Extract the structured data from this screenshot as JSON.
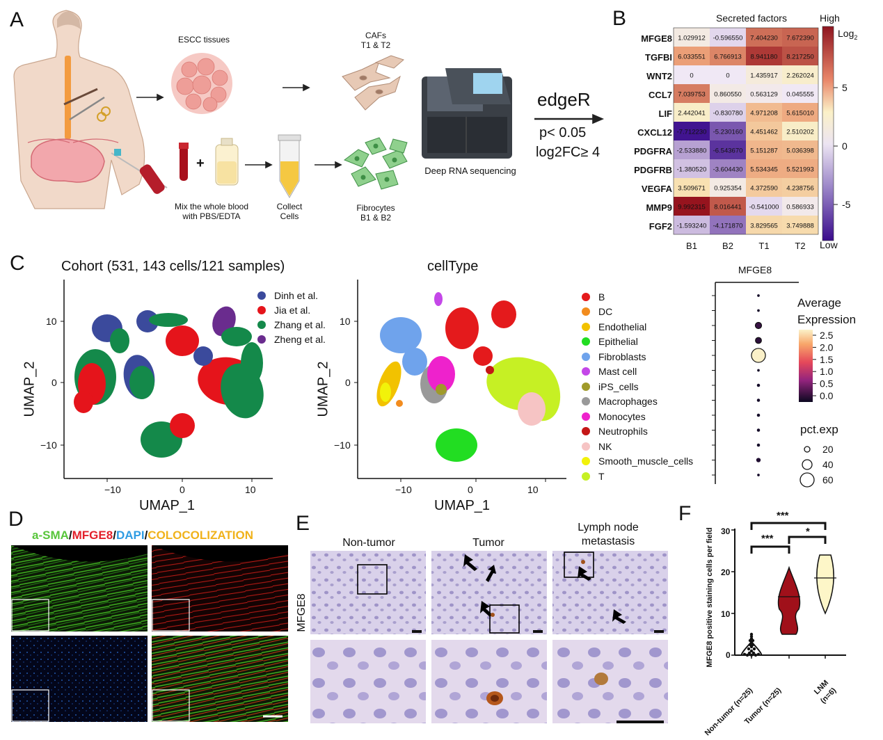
{
  "panels": {
    "A": "A",
    "B": "B",
    "C": "C",
    "D": "D",
    "E": "E",
    "F": "F"
  },
  "panelA": {
    "escc": "ESCC tissues",
    "cafs_line1": "CAFs",
    "cafs_line2": "T1 & T2",
    "mix_line1": "Mix the whole blood",
    "mix_line2": "with PBS/EDTA",
    "collect_line1": "Collect",
    "collect_line2": "Cells",
    "fibro_line1": "Fibrocytes",
    "fibro_line2": "B1 & B2",
    "seq": "Deep RNA sequencing",
    "plus": "+",
    "edger": "edgeR",
    "pval": "p< 0.05",
    "log2fc": "log2FC≥ 4"
  },
  "panelB": {
    "title": "Secreted factors",
    "high": "High",
    "low": "Low",
    "cbar_label": "Log",
    "cbar_sub": "2",
    "cbar_ticks": [
      "5",
      "0",
      "-5"
    ],
    "columns": [
      "B1",
      "B2",
      "T1",
      "T2"
    ],
    "rows": [
      "MFGE8",
      "TGFBI",
      "WNT2",
      "CCL7",
      "LIF",
      "CXCL12",
      "PDGFRA",
      "PDGFRB",
      "VEGFA",
      "MMP9",
      "FGF2"
    ],
    "values": [
      [
        "1.029912",
        "-0.596550",
        "7.404230",
        "7.672390"
      ],
      [
        "6.033551",
        "6.766913",
        "8.941180",
        "8.217250"
      ],
      [
        "0",
        "0",
        "1.435917",
        "2.262024"
      ],
      [
        "7.039753",
        "0.860550",
        "0.563129",
        "0.045555"
      ],
      [
        "2.442041",
        "-0.830780",
        "4.971208",
        "5.615010"
      ],
      [
        "-7.712230",
        "-5.230160",
        "4.451462",
        "2.510202"
      ],
      [
        "-2.533880",
        "-6.543670",
        "5.151287",
        "5.036398"
      ],
      [
        "-1.380520",
        "-3.604430",
        "5.534345",
        "5.521993"
      ],
      [
        "3.509671",
        "0.925354",
        "4.372590",
        "4.238756"
      ],
      [
        "9.992315",
        "8.016441",
        "-0.541000",
        "0.586933"
      ],
      [
        "-1.593240",
        "-4.171870",
        "3.829565",
        "3.749888"
      ]
    ]
  },
  "panelC": {
    "umap1_title": "Cohort (531, 143 cells/121 samples)",
    "umap2_title": "cellType",
    "xlabel": "UMAP_1",
    "ylabel": "UMAP_2",
    "xticks": [
      "−10",
      "0",
      "10"
    ],
    "yticks": [
      "10",
      "0",
      "−10"
    ],
    "cohort_legend": [
      {
        "name": "Dinh et al.",
        "color": "#3b4a9c"
      },
      {
        "name": "Jia et al.",
        "color": "#e5141b"
      },
      {
        "name": "Zhang et al.",
        "color": "#14894a"
      },
      {
        "name": "Zheng et al.",
        "color": "#6a2c8e"
      }
    ],
    "celltype_legend": [
      {
        "name": "B",
        "color": "#e41a1c"
      },
      {
        "name": "DC",
        "color": "#f28c1e"
      },
      {
        "name": "Endothelial",
        "color": "#f2c200"
      },
      {
        "name": "Epithelial",
        "color": "#22dd22"
      },
      {
        "name": "Fibroblasts",
        "color": "#6fa3ec"
      },
      {
        "name": "Mast cell",
        "color": "#c447e8"
      },
      {
        "name": "iPS_cells",
        "color": "#a09a2a"
      },
      {
        "name": "Macrophages",
        "color": "#999999"
      },
      {
        "name": "Monocytes",
        "color": "#ee22cc"
      },
      {
        "name": "Neutrophils",
        "color": "#c41616"
      },
      {
        "name": "NK",
        "color": "#f6c4c4"
      },
      {
        "name": "Smooth_muscle_cells",
        "color": "#f2f20a"
      },
      {
        "name": "T",
        "color": "#c6f024"
      }
    ],
    "dot_title": "MFGE8",
    "avg_expr_line1": "Average",
    "avg_expr_line2": "Expression",
    "avg_ticks": [
      "2.5",
      "2.0",
      "1.5",
      "1.0",
      "0.5",
      "0.0"
    ],
    "pct_title": "pct.exp",
    "pct_ticks": [
      "20",
      "40",
      "60"
    ]
  },
  "panelD": {
    "asma": "a-SMA",
    "sep1": "/",
    "mfge8": "MFGE8",
    "sep2": "/",
    "dapi": "DAPI",
    "sep3": "/",
    "coloc": "COLOCOLIZATION"
  },
  "panelE": {
    "col1": "Non-tumor",
    "col2": "Tumor",
    "col3_line1": "Lymph node",
    "col3_line2": "metastasis",
    "side": "MFGE8"
  },
  "panelF": {
    "ylabel": "MFGE8 positive staining cells per field",
    "yticks": [
      "30",
      "20",
      "10",
      "0"
    ],
    "groups": [
      "Non-tumor (n=25)",
      "Tumor (n=25)",
      "LNM",
      "(n=6)"
    ],
    "sig1": "***",
    "sig2": "***",
    "sig3": "*"
  },
  "chart_data": [
    {
      "type": "heatmap",
      "title": "Secreted factors",
      "categories": [
        "B1",
        "B2",
        "T1",
        "T2"
      ],
      "rows": [
        "MFGE8",
        "TGFBI",
        "WNT2",
        "CCL7",
        "LIF",
        "CXCL12",
        "PDGFRA",
        "PDGFRB",
        "VEGFA",
        "MMP9",
        "FGF2"
      ],
      "values": [
        [
          1.029912,
          -0.59655,
          7.40423,
          7.67239
        ],
        [
          6.033551,
          6.766913,
          8.94118,
          8.21725
        ],
        [
          0,
          0,
          1.435917,
          2.262024
        ],
        [
          7.039753,
          0.86055,
          0.563129,
          0.045555
        ],
        [
          2.442041,
          -0.83078,
          4.971208,
          5.61501
        ],
        [
          -7.71223,
          -5.23016,
          4.451462,
          2.510202
        ],
        [
          -2.53388,
          -6.54367,
          5.151287,
          5.036398
        ],
        [
          -1.38052,
          -3.60443,
          5.534345,
          5.521993
        ],
        [
          3.509671,
          0.925354,
          4.37259,
          4.238756
        ],
        [
          9.992315,
          8.016441,
          -0.541,
          0.586933
        ],
        [
          -1.59324,
          -4.17187,
          3.829565,
          3.749888
        ]
      ]
    },
    {
      "type": "scatter",
      "title": "MFGE8",
      "y": [
        "B",
        "DC",
        "Endothelial",
        "Epithelial",
        "Fibroblasts",
        "Mast cell",
        "iPS_cells",
        "Macrophages",
        "Monocytes",
        "Neutrophils",
        "NK",
        "Smooth_muscle_cells",
        "T"
      ],
      "avg_expression": [
        0,
        0,
        0.3,
        0.2,
        2.5,
        0,
        0,
        0,
        0,
        0,
        0,
        0.1,
        0
      ],
      "pct_exp": [
        2,
        2,
        12,
        11,
        60,
        2,
        3,
        3,
        3,
        3,
        3,
        6,
        2
      ]
    },
    {
      "type": "violin",
      "ylabel": "MFGE8 positive staining cells per field",
      "ylim": [
        0,
        30
      ],
      "categories": [
        "Non-tumor (n=25)",
        "Tumor (n=25)",
        "LNM (n=6)"
      ],
      "series": [
        {
          "name": "Non-tumor (n=25)",
          "min": 0,
          "median": 0,
          "max": 5
        },
        {
          "name": "Tumor (n=25)",
          "min": 5,
          "median": 14,
          "max": 21
        },
        {
          "name": "LNM (n=6)",
          "min": 10,
          "median": 18.5,
          "max": 24
        }
      ]
    }
  ]
}
